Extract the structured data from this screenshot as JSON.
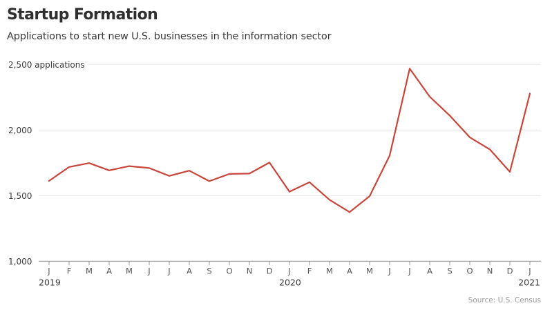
{
  "header": {
    "title": "Startup Formation",
    "subtitle": "Applications to start new U.S. businesses in the information sector"
  },
  "footer": {
    "source": "Source: U.S. Census"
  },
  "colors": {
    "line": "#c9453a",
    "grid": "#e6e6e6",
    "axis": "#999999"
  },
  "chart_data": {
    "type": "line",
    "title": "Startup Formation",
    "subtitle": "Applications to start new U.S. businesses in the information sector",
    "xlabel": "",
    "ylabel": "applications",
    "ylim": [
      1000,
      2500
    ],
    "grid": true,
    "yticks": [
      {
        "value": 2500,
        "label": "2,500 applications"
      },
      {
        "value": 2000,
        "label": "2,000"
      },
      {
        "value": 1500,
        "label": "1,500"
      },
      {
        "value": 1000,
        "label": "1,000"
      }
    ],
    "x_tick_labels": [
      "J",
      "F",
      "M",
      "A",
      "M",
      "J",
      "J",
      "A",
      "S",
      "O",
      "N",
      "D",
      "J",
      "F",
      "M",
      "A",
      "M",
      "J",
      "J",
      "A",
      "S",
      "O",
      "N",
      "D",
      "J"
    ],
    "year_labels": [
      {
        "index": 0,
        "label": "2019"
      },
      {
        "index": 12,
        "label": "2020"
      },
      {
        "index": 24,
        "label": "2021"
      }
    ],
    "x": [
      "2019-01",
      "2019-02",
      "2019-03",
      "2019-04",
      "2019-05",
      "2019-06",
      "2019-07",
      "2019-08",
      "2019-09",
      "2019-10",
      "2019-11",
      "2019-12",
      "2020-01",
      "2020-02",
      "2020-03",
      "2020-04",
      "2020-05",
      "2020-06",
      "2020-07",
      "2020-08",
      "2020-09",
      "2020-10",
      "2020-11",
      "2020-12",
      "2021-01"
    ],
    "series": [
      {
        "name": "Applications",
        "values": [
          1612,
          1718,
          1748,
          1692,
          1725,
          1710,
          1650,
          1690,
          1610,
          1665,
          1668,
          1752,
          1530,
          1602,
          1468,
          1374,
          1496,
          1805,
          2468,
          2254,
          2110,
          1944,
          1852,
          1681,
          2278
        ]
      }
    ],
    "source": "Source: U.S. Census"
  }
}
